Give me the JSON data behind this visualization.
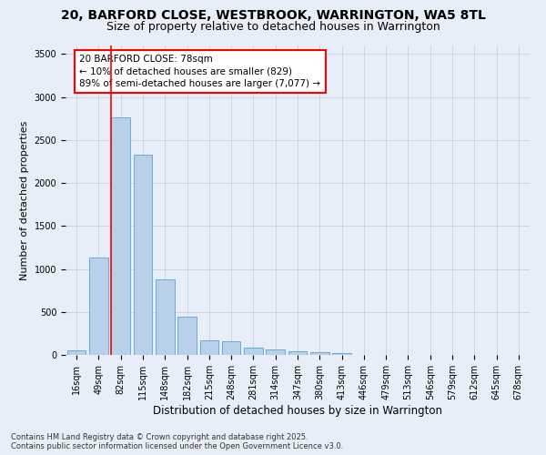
{
  "title_line1": "20, BARFORD CLOSE, WESTBROOK, WARRINGTON, WA5 8TL",
  "title_line2": "Size of property relative to detached houses in Warrington",
  "xlabel": "Distribution of detached houses by size in Warrington",
  "ylabel": "Number of detached properties",
  "bar_color": "#b8d0ea",
  "bar_edge_color": "#6aaad4",
  "background_color": "#e8eef8",
  "categories": [
    "16sqm",
    "49sqm",
    "82sqm",
    "115sqm",
    "148sqm",
    "182sqm",
    "215sqm",
    "248sqm",
    "281sqm",
    "314sqm",
    "347sqm",
    "380sqm",
    "413sqm",
    "446sqm",
    "479sqm",
    "513sqm",
    "546sqm",
    "579sqm",
    "612sqm",
    "645sqm",
    "678sqm"
  ],
  "values": [
    55,
    1130,
    2760,
    2330,
    880,
    440,
    170,
    160,
    90,
    60,
    45,
    28,
    22,
    5,
    4,
    0,
    0,
    0,
    0,
    0,
    0
  ],
  "ylim": [
    0,
    3600
  ],
  "yticks": [
    0,
    500,
    1000,
    1500,
    2000,
    2500,
    3000,
    3500
  ],
  "annotation_text": "20 BARFORD CLOSE: 78sqm\n← 10% of detached houses are smaller (829)\n89% of semi-detached houses are larger (7,077) →",
  "property_line_index": 2,
  "footer_line1": "Contains HM Land Registry data © Crown copyright and database right 2025.",
  "footer_line2": "Contains public sector information licensed under the Open Government Licence v3.0.",
  "grid_color": "#c8d0e0",
  "annotation_fontsize": 7.5,
  "title_fontsize1": 10,
  "title_fontsize2": 9,
  "ylabel_fontsize": 8,
  "xlabel_fontsize": 8.5,
  "tick_fontsize": 7,
  "footer_fontsize": 6
}
